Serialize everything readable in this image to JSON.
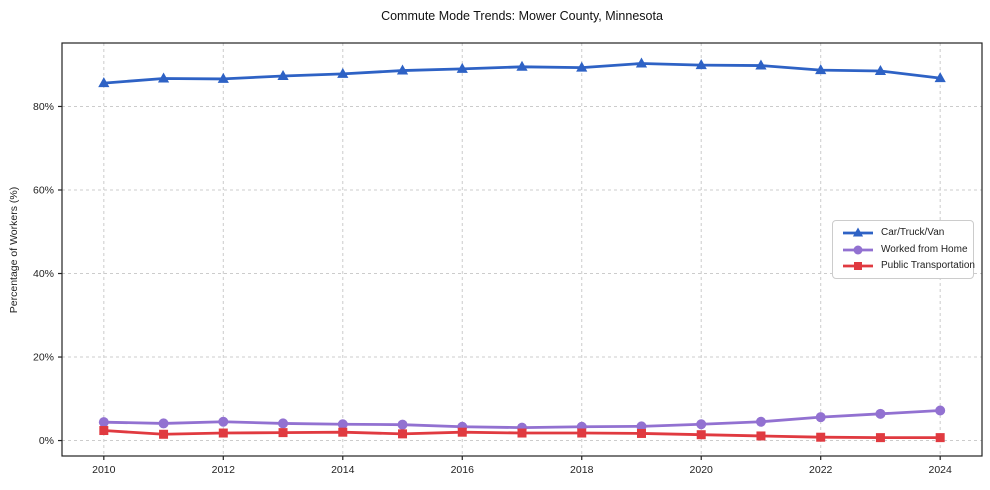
{
  "chart_data": {
    "type": "line",
    "title": "Commute Mode Trends: Mower County, Minnesota",
    "xlabel": "",
    "ylabel": "Percentage of Workers (%)",
    "x": [
      2010,
      2011,
      2012,
      2013,
      2014,
      2015,
      2016,
      2017,
      2018,
      2019,
      2020,
      2021,
      2022,
      2023,
      2024
    ],
    "series": [
      {
        "name": "Car/Truck/Van",
        "marker": "triangle",
        "color": "#2e62c5",
        "values": [
          85.6,
          86.7,
          86.6,
          87.3,
          87.8,
          88.6,
          89.0,
          89.5,
          89.3,
          90.3,
          89.9,
          89.8,
          88.7,
          88.5,
          86.8
        ]
      },
      {
        "name": "Worked from Home",
        "marker": "circle",
        "color": "#9271d1",
        "values": [
          4.4,
          4.1,
          4.5,
          4.1,
          3.9,
          3.8,
          3.3,
          3.1,
          3.3,
          3.4,
          3.9,
          4.5,
          5.6,
          6.4,
          7.2
        ]
      },
      {
        "name": "Public Transportation",
        "marker": "square",
        "color": "#e03a40",
        "values": [
          2.4,
          1.5,
          1.8,
          1.9,
          2.0,
          1.6,
          2.0,
          1.8,
          1.8,
          1.7,
          1.4,
          1.1,
          0.8,
          0.7,
          0.7
        ]
      }
    ],
    "xticks": [
      2010,
      2012,
      2014,
      2016,
      2018,
      2020,
      2022,
      2024
    ],
    "xtick_labels": [
      "2010",
      "2012",
      "2014",
      "2016",
      "2018",
      "2020",
      "2022",
      "2024"
    ],
    "yticks": [
      0,
      20,
      40,
      60,
      80
    ],
    "ytick_labels": [
      "0%",
      "20%",
      "40%",
      "60%",
      "80%"
    ],
    "xlim": [
      2009.3,
      2024.7
    ],
    "ylim": [
      -3.7,
      95.2
    ],
    "grid": "dashed",
    "legend_position": "center-right",
    "colors": {
      "grid": "#cccccc",
      "spine": "#222222",
      "tick_label": "#222222"
    }
  }
}
